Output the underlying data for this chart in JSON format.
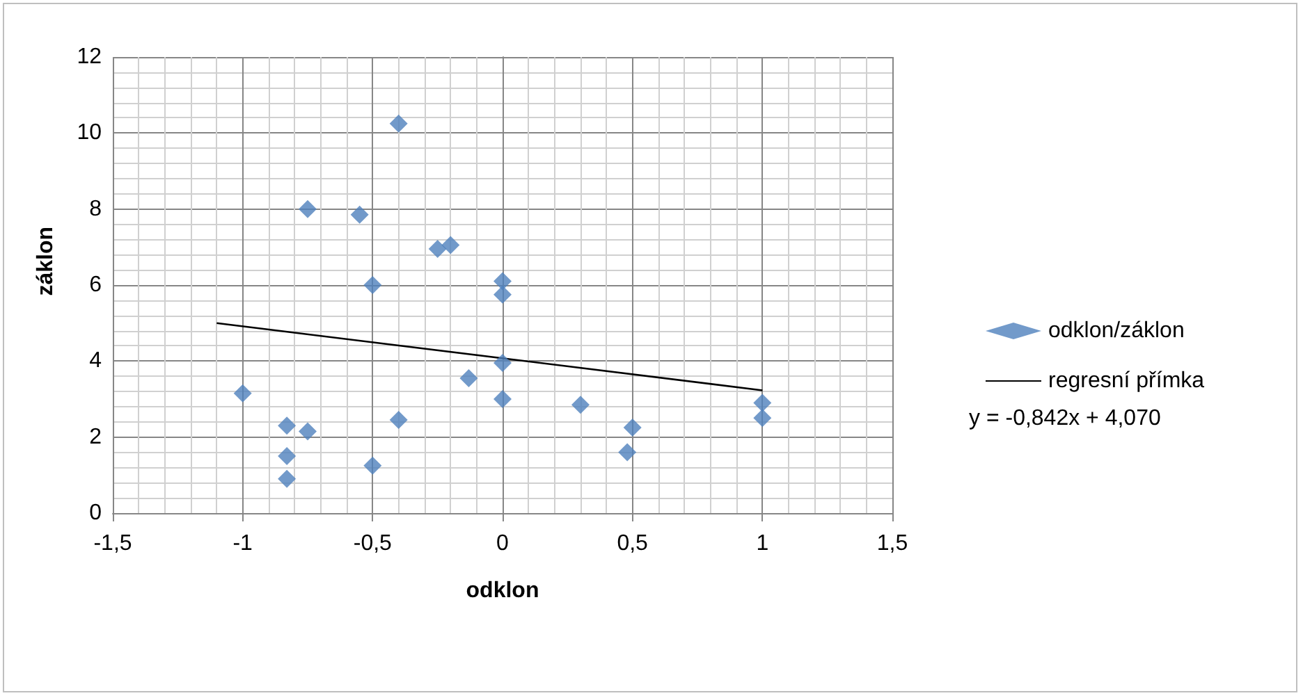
{
  "chart_data": {
    "type": "scatter",
    "xlabel": "odklon",
    "ylabel": "záklon",
    "series": [
      {
        "name": "odklon/záklon",
        "color": "#4f81bd",
        "marker": "diamond",
        "x": [
          -0.4,
          -0.75,
          -0.55,
          -0.25,
          -0.2,
          -0.5,
          0,
          0,
          0,
          -0.13,
          0,
          -1,
          -0.83,
          -0.75,
          -0.4,
          -0.83,
          -0.83,
          -0.5,
          0.3,
          0.5,
          0.48,
          1,
          1
        ],
        "values": [
          10.25,
          8.0,
          7.85,
          6.95,
          7.05,
          6.0,
          6.1,
          5.75,
          3.95,
          3.55,
          3.0,
          3.15,
          2.3,
          2.15,
          2.45,
          1.5,
          0.9,
          1.25,
          2.85,
          2.25,
          1.6,
          2.9,
          2.5
        ]
      },
      {
        "name": "regresní přímka",
        "type": "line",
        "color": "#000000",
        "marker": "none",
        "x": [
          -1.1,
          1
        ],
        "values": [
          5.0,
          3.23
        ]
      }
    ],
    "xlim": [
      -1.5,
      1.5
    ],
    "xticks": [
      {
        "value": -1.5,
        "label": "-1,5"
      },
      {
        "value": -1,
        "label": "-1"
      },
      {
        "value": -0.5,
        "label": "-0,5"
      },
      {
        "value": 0,
        "label": "0"
      },
      {
        "value": 0.5,
        "label": "0,5"
      },
      {
        "value": 1,
        "label": "1"
      },
      {
        "value": 1.5,
        "label": "1,5"
      }
    ],
    "ylim": [
      0,
      12
    ],
    "yticks": [
      0,
      2,
      4,
      6,
      8,
      10,
      12
    ],
    "grid": true,
    "legend": "right",
    "annotations": [
      "y = -0,842x + 4,070"
    ]
  }
}
